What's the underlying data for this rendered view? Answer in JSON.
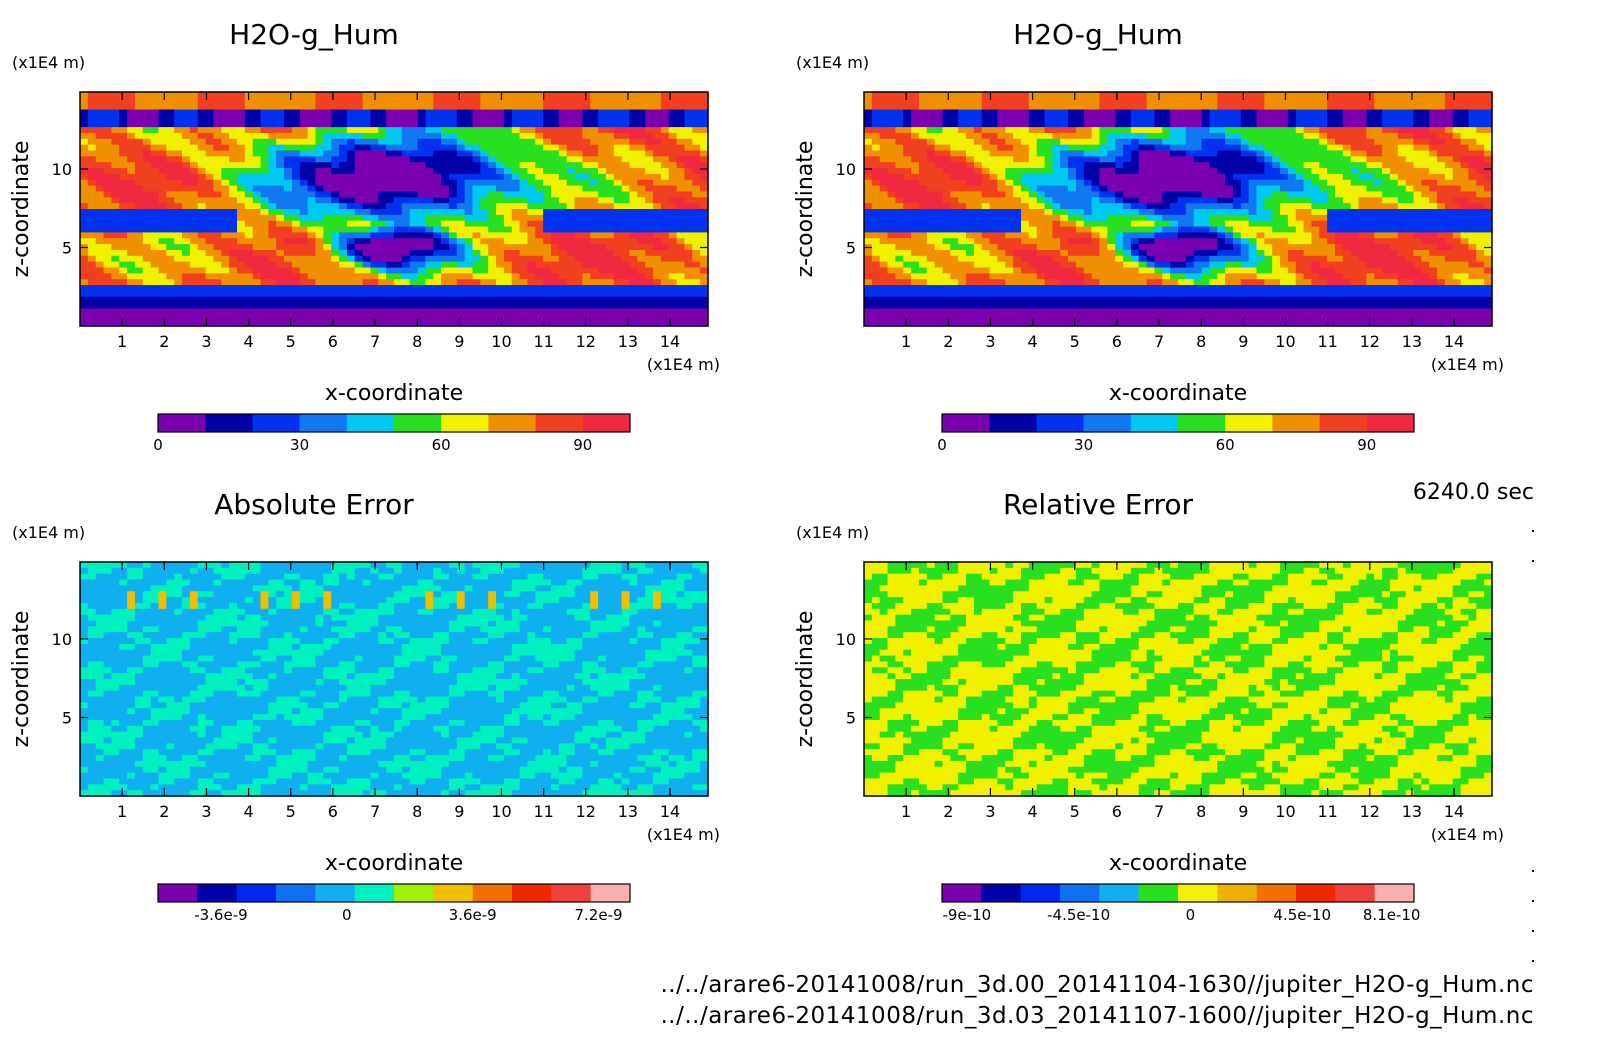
{
  "time_label": "6240.0 sec",
  "footer": {
    "file_a": "../../arare6-20141008/run_3d.00_20141104-1630//jupiter_H2O-g_Hum.nc",
    "file_b": "../../arare6-20141008/run_3d.03_20141107-1600//jupiter_H2O-g_Hum.nc"
  },
  "chart_data": [
    {
      "type": "heatmap",
      "title": "H2O-g_Hum",
      "xlabel": "x-coordinate",
      "ylabel": "z-coordinate",
      "x_unit": "(x1E4 m)",
      "y_unit": "(x1E4 m)",
      "xlim": [
        0,
        14.9
      ],
      "ylim": [
        0,
        14.9
      ],
      "x_ticks": [
        "1",
        "2",
        "3",
        "4",
        "5",
        "6",
        "7",
        "8",
        "9",
        "10",
        "11",
        "12",
        "13",
        "14"
      ],
      "y_ticks": [
        "5",
        "10"
      ],
      "colorbar": {
        "colors": [
          "#7a00b0",
          "#0000a8",
          "#0032f0",
          "#1078f0",
          "#00c8f0",
          "#28e020",
          "#f0f000",
          "#f09000",
          "#f04020",
          "#f02840"
        ],
        "tick_labels": [
          "0",
          "30",
          "60",
          "90"
        ],
        "tick_values": [
          0,
          30,
          60,
          90
        ],
        "range": [
          0,
          100
        ]
      }
    },
    {
      "type": "heatmap",
      "title": "H2O-g_Hum",
      "xlabel": "x-coordinate",
      "ylabel": "z-coordinate",
      "x_unit": "(x1E4 m)",
      "y_unit": "(x1E4 m)",
      "xlim": [
        0,
        14.9
      ],
      "ylim": [
        0,
        14.9
      ],
      "x_ticks": [
        "1",
        "2",
        "3",
        "4",
        "5",
        "6",
        "7",
        "8",
        "9",
        "10",
        "11",
        "12",
        "13",
        "14"
      ],
      "y_ticks": [
        "5",
        "10"
      ],
      "colorbar": {
        "colors": [
          "#7a00b0",
          "#0000a8",
          "#0032f0",
          "#1078f0",
          "#00c8f0",
          "#28e020",
          "#f0f000",
          "#f09000",
          "#f04020",
          "#f02840"
        ],
        "tick_labels": [
          "0",
          "30",
          "60",
          "90"
        ],
        "tick_values": [
          0,
          30,
          60,
          90
        ],
        "range": [
          0,
          100
        ]
      }
    },
    {
      "type": "heatmap",
      "title": "Absolute Error",
      "xlabel": "x-coordinate",
      "ylabel": "z-coordinate",
      "x_unit": "(x1E4 m)",
      "y_unit": "(x1E4 m)",
      "xlim": [
        0,
        14.9
      ],
      "ylim": [
        0,
        14.9
      ],
      "x_ticks": [
        "1",
        "2",
        "3",
        "4",
        "5",
        "6",
        "7",
        "8",
        "9",
        "10",
        "11",
        "12",
        "13",
        "14"
      ],
      "y_ticks": [
        "5",
        "10"
      ],
      "colorbar": {
        "colors": [
          "#7a00b0",
          "#0000a8",
          "#0028f0",
          "#1070f0",
          "#10b0f0",
          "#00f0c0",
          "#a0f000",
          "#f0c000",
          "#f07000",
          "#f02800",
          "#f04040",
          "#f8b0b0"
        ],
        "tick_labels": [
          "-3.6e-9",
          "0",
          "3.6e-9",
          "7.2e-9"
        ],
        "tick_values": [
          -3.6e-09,
          0,
          3.6e-09,
          7.2e-09
        ],
        "range": [
          -5.4e-09,
          8.1e-09
        ]
      }
    },
    {
      "type": "heatmap",
      "title": "Relative Error",
      "xlabel": "x-coordinate",
      "ylabel": "z-coordinate",
      "x_unit": "(x1E4 m)",
      "y_unit": "(x1E4 m)",
      "xlim": [
        0,
        14.9
      ],
      "ylim": [
        0,
        14.9
      ],
      "x_ticks": [
        "1",
        "2",
        "3",
        "4",
        "5",
        "6",
        "7",
        "8",
        "9",
        "10",
        "11",
        "12",
        "13",
        "14"
      ],
      "y_ticks": [
        "5",
        "10"
      ],
      "colorbar": {
        "colors": [
          "#7a00b0",
          "#0000a8",
          "#0028f0",
          "#1070f0",
          "#10b0f0",
          "#28e020",
          "#f0f000",
          "#f0b000",
          "#f07000",
          "#f02800",
          "#f04040",
          "#f8b0b0"
        ],
        "tick_labels": [
          "-9e-10",
          "-4.5e-10",
          "0",
          "4.5e-10",
          "8.1e-10"
        ],
        "tick_values": [
          -9e-10,
          -4.5e-10,
          0,
          4.5e-10,
          8.1e-10
        ],
        "range": [
          -1e-09,
          9e-10
        ]
      }
    }
  ]
}
